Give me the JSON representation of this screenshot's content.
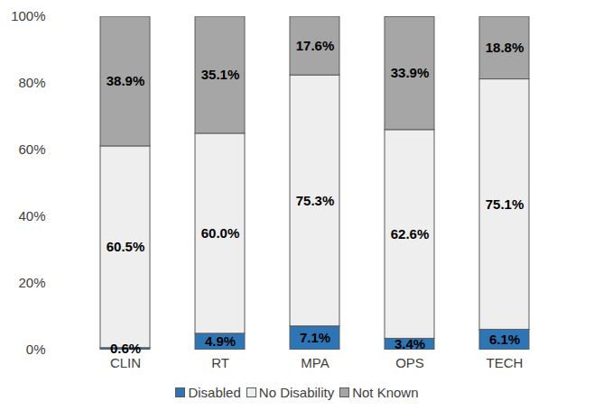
{
  "chart_data": {
    "type": "bar",
    "stacked": true,
    "categories": [
      "CLIN",
      "RT",
      "MPA",
      "OPS",
      "TECH"
    ],
    "series": [
      {
        "name": "Disabled",
        "color": "#2e75b6",
        "values": [
          0.6,
          4.9,
          7.1,
          3.4,
          6.1
        ],
        "value_labels": [
          "0.6%",
          "4.9%",
          "7.1%",
          "3.4%",
          "6.1%"
        ]
      },
      {
        "name": "No Disability",
        "color": "#eeeeee",
        "values": [
          60.5,
          60.0,
          75.3,
          62.6,
          75.1
        ],
        "value_labels": [
          "60.5%",
          "60.0%",
          "75.3%",
          "62.6%",
          "75.1%"
        ]
      },
      {
        "name": "Not Known",
        "color": "#a6a6a6",
        "values": [
          38.9,
          35.1,
          17.6,
          33.9,
          18.8
        ],
        "value_labels": [
          "38.9%",
          "35.1%",
          "17.6%",
          "33.9%",
          "18.8%"
        ]
      }
    ],
    "ylim": [
      0,
      100
    ],
    "yticks": [
      {
        "value": 0,
        "label": "0%"
      },
      {
        "value": 20,
        "label": "20%"
      },
      {
        "value": 40,
        "label": "40%"
      },
      {
        "value": 60,
        "label": "60%"
      },
      {
        "value": 80,
        "label": "80%"
      },
      {
        "value": 100,
        "label": "100%"
      }
    ],
    "grid": false,
    "data_labels": true,
    "legend": "bottom"
  }
}
